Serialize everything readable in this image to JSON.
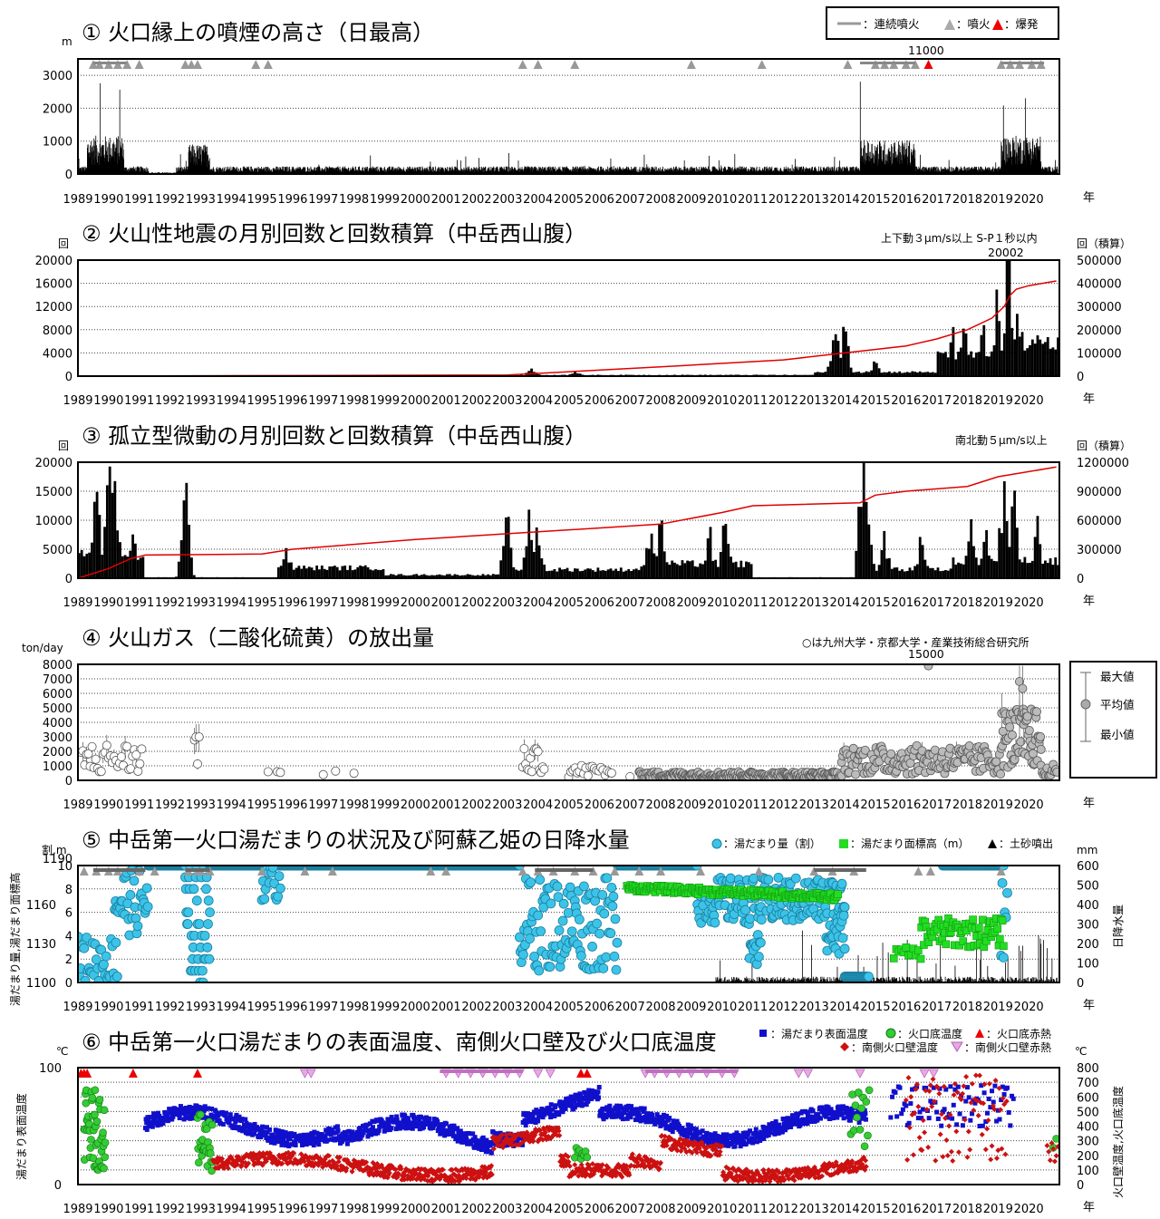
{
  "years": [
    "1989",
    "1990",
    "1991",
    "1992",
    "1993",
    "1994",
    "1995",
    "1996",
    "1997",
    "1998",
    "1999",
    "2000",
    "2001",
    "2002",
    "2003",
    "2004",
    "2005",
    "2006",
    "2007",
    "2008",
    "2009",
    "2010",
    "2011",
    "2012",
    "2013",
    "2014",
    "2015",
    "2016",
    "2017",
    "2018",
    "2019",
    "2020"
  ],
  "year_unit": "年",
  "chart_data": [
    {
      "id": "p1",
      "type": "bar",
      "title": "① 火口縁上の噴煙の高さ（日最高）",
      "ylabel": "m",
      "ylim": [
        0,
        3500
      ],
      "yticks": [
        0,
        1000,
        2000,
        3000
      ],
      "legend": {
        "continuous": "：連続噴火",
        "eruption": "：噴火",
        "explosion": "：爆発"
      },
      "annotations": [
        {
          "x": 2016.73,
          "text": "11000"
        }
      ],
      "grid": true
    },
    {
      "id": "p2",
      "type": "bar",
      "title": "② 火山性地震の月別回数と回数積算（中岳西山腹）",
      "ylabel": "回",
      "ylabel_right": "回（積算）",
      "ylim": [
        0,
        20000
      ],
      "yticks": [
        0,
        4000,
        8000,
        12000,
        16000,
        20000
      ],
      "ylim_right": [
        0,
        500000
      ],
      "yticks_right": [
        0,
        100000,
        200000,
        300000,
        400000,
        500000
      ],
      "note": "上下動３μm/s以上 S-P１秒以内",
      "annotations": [
        {
          "x": 2019.33,
          "text": "20002"
        }
      ],
      "monthly_peaks": [
        [
          2003.8,
          1500
        ],
        [
          2005.2,
          900
        ],
        [
          2013.5,
          1200
        ],
        [
          2013.7,
          9000
        ],
        [
          2014.0,
          7500
        ],
        [
          2015.0,
          3000
        ],
        [
          2017.5,
          7000
        ],
        [
          2017.9,
          9200
        ],
        [
          2018.5,
          7500
        ],
        [
          2019.0,
          12000
        ],
        [
          2019.33,
          18000
        ],
        [
          2019.6,
          10000
        ],
        [
          2019.8,
          8000
        ],
        [
          2020.3,
          6500
        ]
      ],
      "cumulative_series": [
        [
          1989,
          0
        ],
        [
          2003,
          5000
        ],
        [
          2008,
          40000
        ],
        [
          2012,
          70000
        ],
        [
          2014,
          100000
        ],
        [
          2016,
          130000
        ],
        [
          2017,
          160000
        ],
        [
          2018,
          200000
        ],
        [
          2018.8,
          250000
        ],
        [
          2019.2,
          300000
        ],
        [
          2019.4,
          350000
        ],
        [
          2019.6,
          375000
        ],
        [
          2020,
          390000
        ],
        [
          2020.9,
          410000
        ]
      ],
      "grid": true
    },
    {
      "id": "p3",
      "type": "bar",
      "title": "③ 孤立型微動の月別回数と回数積算（中岳西山腹）",
      "ylabel": "回",
      "ylabel_right": "回（積算）",
      "ylim": [
        0,
        20000
      ],
      "yticks": [
        0,
        5000,
        10000,
        15000,
        20000
      ],
      "ylim_right": [
        0,
        1200000
      ],
      "yticks_right": [
        0,
        300000,
        600000,
        900000,
        1200000
      ],
      "note": "南北動５μm/s以上",
      "monthly_peaks": [
        [
          1989.6,
          16000
        ],
        [
          1990.0,
          15500
        ],
        [
          1990.2,
          17000
        ],
        [
          1990.8,
          7500
        ],
        [
          1992.5,
          15000
        ],
        [
          1995.8,
          6000
        ],
        [
          2003.0,
          8500
        ],
        [
          2003.7,
          10000
        ],
        [
          2004.0,
          7500
        ],
        [
          2007.7,
          9500
        ],
        [
          2008.0,
          11000
        ],
        [
          2009.6,
          7500
        ],
        [
          2010.1,
          9500
        ],
        [
          2014.6,
          19500
        ],
        [
          2014.7,
          17000
        ],
        [
          2015.3,
          7500
        ],
        [
          2016.5,
          7000
        ],
        [
          2018.1,
          11000
        ],
        [
          2018.6,
          8500
        ],
        [
          2019.2,
          17000
        ],
        [
          2019.5,
          13000
        ],
        [
          2020.3,
          9000
        ]
      ],
      "cumulative_series": [
        [
          1989,
          0
        ],
        [
          1990,
          100000
        ],
        [
          1990.7,
          200000
        ],
        [
          1991.2,
          240000
        ],
        [
          1995,
          250000
        ],
        [
          1996,
          300000
        ],
        [
          2000,
          400000
        ],
        [
          2004,
          480000
        ],
        [
          2008,
          560000
        ],
        [
          2010,
          680000
        ],
        [
          2011,
          750000
        ],
        [
          2014.5,
          780000
        ],
        [
          2015,
          860000
        ],
        [
          2016,
          900000
        ],
        [
          2018,
          950000
        ],
        [
          2019,
          1050000
        ],
        [
          2020.9,
          1150000
        ]
      ],
      "grid": true
    },
    {
      "id": "p4",
      "type": "scatter",
      "title": "④ 火山ガス（二酸化硫黄）の放出量",
      "ylabel": "ton/day",
      "ylim": [
        0,
        8000
      ],
      "yticks": [
        0,
        1000,
        2000,
        3000,
        4000,
        5000,
        6000,
        7000,
        8000
      ],
      "note": "○は九州大学・京都大学・産業技術総合研究所",
      "annotations": [
        {
          "x": 2016.73,
          "text": "15000"
        }
      ],
      "legend": {
        "max": "最大値",
        "mean": "平均値",
        "min": "最小値"
      },
      "grid": true
    },
    {
      "id": "p5",
      "type": "scatter",
      "title": "⑤ 中岳第一火口湯だまりの状況及び阿蘇乙姫の日降水量",
      "ylabel": "湯だまり量,湯だまり面標高",
      "ylabel_units": "割,m",
      "ylabel_right": "日降水量",
      "ylabel_right_unit": "mm",
      "ylim": [
        0,
        10
      ],
      "yticks": [
        "0",
        "2",
        "4",
        "6",
        "8",
        "10"
      ],
      "elev_labels": [
        "1100",
        "1130",
        "1160",
        "1190"
      ],
      "ylim_right": [
        0,
        600
      ],
      "yticks_right": [
        0,
        100,
        200,
        300,
        400,
        500,
        600
      ],
      "legend": {
        "volume": "：湯だまり量（割）",
        "elevation": "：湯だまり面標高（m）",
        "mud": "：土砂噴出"
      },
      "grid": true
    },
    {
      "id": "p6",
      "type": "scatter",
      "title": "⑥ 中岳第一火口湯だまりの表面温度、南側火口壁及び火口底温度",
      "ylabel": "湯だまり表面温度",
      "unit": "℃",
      "ylabel_right": "火口壁温度,火口底温度",
      "unit_right": "℃",
      "ylim": [
        0,
        100
      ],
      "yticks": [
        0,
        100
      ],
      "ylim_right": [
        0,
        800
      ],
      "yticks_right": [
        0,
        100,
        200,
        300,
        400,
        500,
        600,
        700,
        800
      ],
      "legend": {
        "surface": "：湯だまり表面温度",
        "floor": "：火口底温度",
        "red": "：火口底赤熱",
        "wall": "：南側火口壁温度",
        "wallglow": "：南側火口壁赤熱"
      },
      "grid": true
    }
  ]
}
